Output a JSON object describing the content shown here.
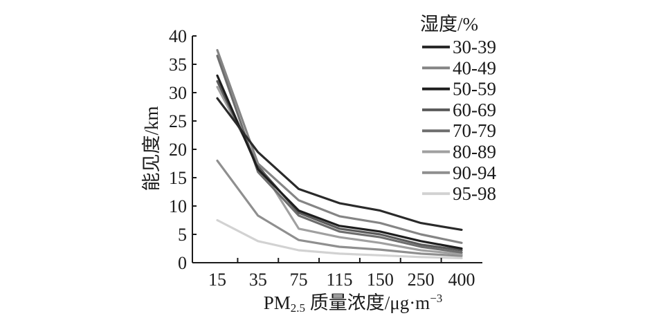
{
  "chart_data": {
    "type": "line",
    "categories": [
      "15",
      "35",
      "75",
      "115",
      "150",
      "250",
      "400"
    ],
    "xlabel": "PM2.5 质量浓度/μg·m⁻³",
    "xlabel_parts": {
      "main": "PM",
      "sub": "2.5",
      "rest": " 质量浓度/μg·m",
      "sup": "−3"
    },
    "ylabel": "能见度/km",
    "ylim": [
      0,
      40
    ],
    "yticks": [
      0,
      5,
      10,
      15,
      20,
      25,
      30,
      35,
      40
    ],
    "grid": false,
    "legend": {
      "title": "湿度/%",
      "placement": "top-right"
    },
    "series": [
      {
        "name": "30-39",
        "color": "#2a2a2a",
        "values": [
          29,
          19.5,
          13,
          10.5,
          9.2,
          7,
          5.8
        ]
      },
      {
        "name": "40-49",
        "color": "#858585",
        "values": [
          37.5,
          17.5,
          11,
          8.2,
          7,
          5,
          3.5
        ]
      },
      {
        "name": "50-59",
        "color": "#1e1e1e",
        "values": [
          33,
          16.5,
          9.2,
          6.5,
          5.5,
          3.8,
          2.5
        ]
      },
      {
        "name": "60-69",
        "color": "#5a5a5a",
        "values": [
          32,
          17,
          8.8,
          6,
          5,
          3.2,
          2.2
        ]
      },
      {
        "name": "70-79",
        "color": "#6e6e6e",
        "values": [
          36.5,
          16,
          8.3,
          5.5,
          4.5,
          2.8,
          1.8
        ]
      },
      {
        "name": "80-89",
        "color": "#a0a0a0",
        "values": [
          31,
          17.5,
          6,
          4.5,
          3.5,
          2.2,
          1.5
        ]
      },
      {
        "name": "90-94",
        "color": "#8f8f8f",
        "values": [
          18,
          8.3,
          4,
          2.8,
          2.3,
          1.6,
          1.2
        ]
      },
      {
        "name": "95-98",
        "color": "#d2d2d2",
        "values": [
          7.5,
          3.8,
          2.2,
          1.6,
          1.3,
          1.0,
          0.8
        ]
      }
    ]
  }
}
